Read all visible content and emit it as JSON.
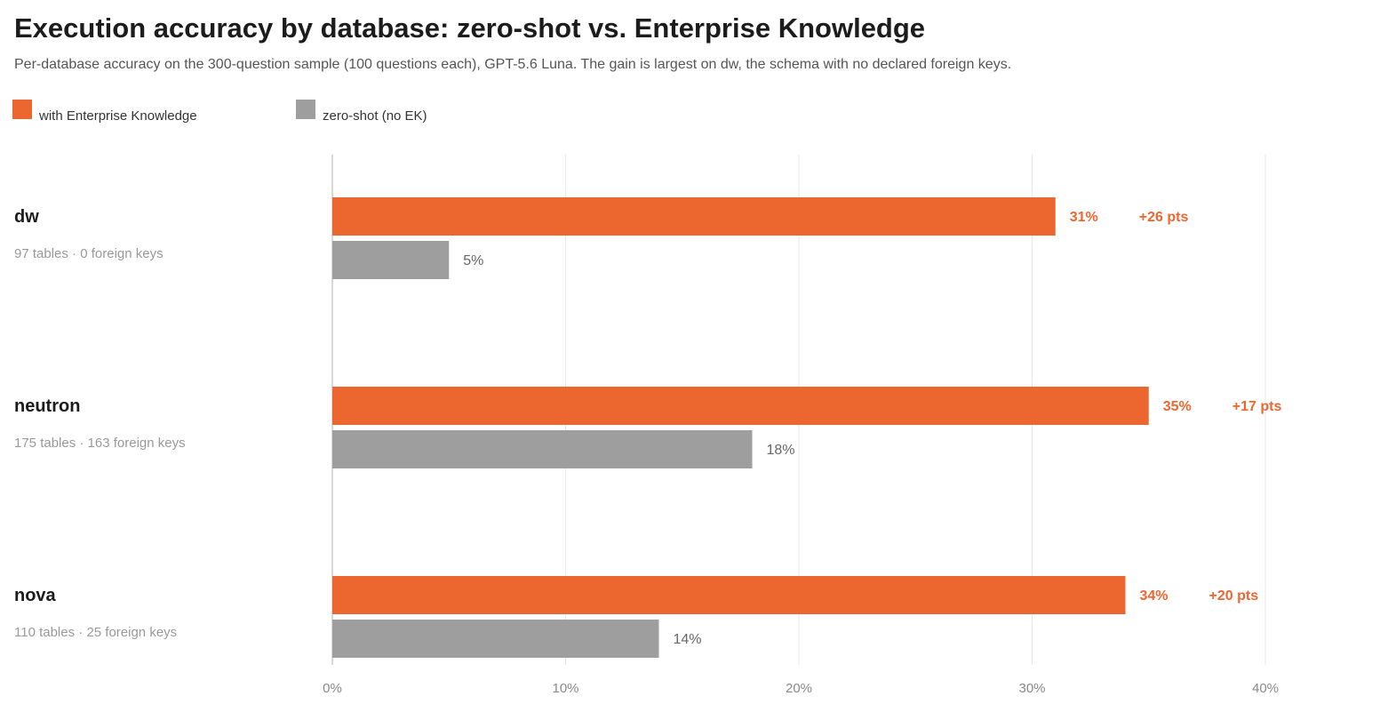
{
  "header": {
    "title": "Execution accuracy by database: zero-shot vs. Enterprise Knowledge",
    "subtitle": "Per-database accuracy on the 300-question sample (100 questions each), GPT-5.6 Luna. The gain is largest on dw, the schema with no declared foreign keys."
  },
  "legend": {
    "ek_label": "with Enterprise Knowledge",
    "zs_label": "zero-shot (no EK)"
  },
  "colors": {
    "ek": "#ec6630",
    "zero_shot": "#9e9e9e",
    "grid": "#e8e8e8",
    "axis": "#cccccc",
    "tick_text": "#888888",
    "category_text": "#1c1c1c",
    "sub_text": "#999999",
    "value_text_zs": "#666666"
  },
  "chart_data": {
    "type": "bar",
    "orientation": "horizontal",
    "title": "Execution accuracy by database: zero-shot vs. Enterprise Knowledge",
    "subtitle": "Per-database accuracy on the 300-question sample (100 questions each), GPT-5.6 Luna. The gain is largest on dw, the schema with no declared foreign keys.",
    "categories": [
      "dw",
      "neutron",
      "nova"
    ],
    "category_details": [
      "97 tables · 0 foreign keys",
      "175 tables · 163 foreign keys",
      "110 tables · 25 foreign keys"
    ],
    "series": [
      {
        "name": "with Enterprise Knowledge",
        "values": [
          31,
          35,
          34
        ],
        "labels": [
          "31%",
          "35%",
          "34%"
        ]
      },
      {
        "name": "zero-shot (no EK)",
        "values": [
          5,
          18,
          14
        ],
        "labels": [
          "5%",
          "18%",
          "14%"
        ]
      }
    ],
    "gains": [
      "+26 pts",
      "+17 pts",
      "+20 pts"
    ],
    "xlim": [
      0,
      40
    ],
    "xticks": [
      0,
      10,
      20,
      30,
      40
    ],
    "xtick_labels": [
      "0%",
      "10%",
      "20%",
      "30%",
      "40%"
    ],
    "grid": true,
    "legend_position": "top-left"
  }
}
